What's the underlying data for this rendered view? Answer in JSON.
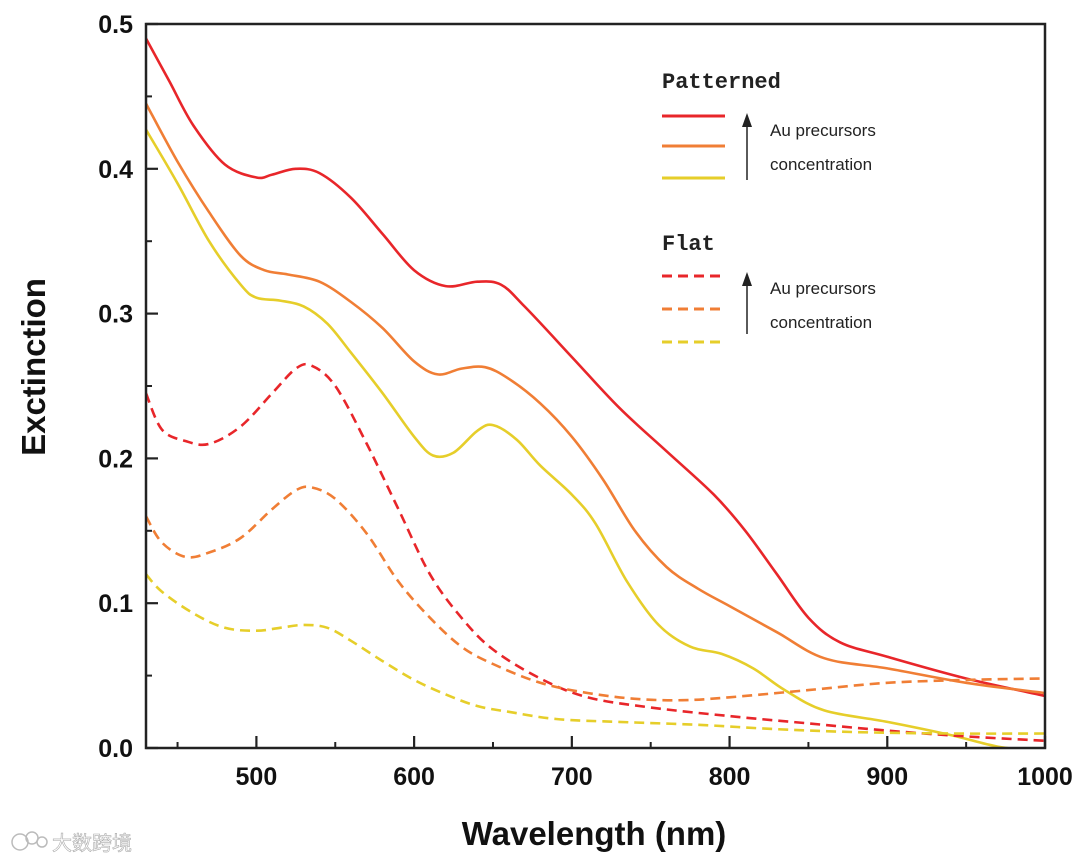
{
  "chart_data": {
    "type": "line",
    "xlabel": "Wavelength (nm)",
    "ylabel": "Exctinction",
    "xlim": [
      430,
      1000
    ],
    "ylim": [
      0,
      0.5
    ],
    "x_ticks": [
      500,
      600,
      700,
      800,
      900,
      1000
    ],
    "x_tick_labels": [
      "500",
      "600",
      "700",
      "800",
      "900",
      "1000"
    ],
    "y_ticks": [
      0.0,
      0.1,
      0.2,
      0.3,
      0.4,
      0.5
    ],
    "y_tick_labels": [
      "0.0",
      "0.1",
      "0.2",
      "0.3",
      "0.4",
      "0.5"
    ],
    "grid": false,
    "legend": {
      "placement": "top-right",
      "groups": [
        {
          "title": "Patterned",
          "note_line1": "Au precursors",
          "note_line2": "concentration"
        },
        {
          "title": "Flat",
          "note_line1": "Au precursors",
          "note_line2": "concentration"
        }
      ]
    },
    "series": [
      {
        "name": "Patterned - high",
        "group": "Patterned",
        "color": "#e8262a",
        "style": "solid",
        "points": [
          [
            430,
            0.49
          ],
          [
            445,
            0.46
          ],
          [
            460,
            0.43
          ],
          [
            480,
            0.403
          ],
          [
            500,
            0.394
          ],
          [
            510,
            0.396
          ],
          [
            525,
            0.4
          ],
          [
            540,
            0.397
          ],
          [
            560,
            0.38
          ],
          [
            580,
            0.355
          ],
          [
            600,
            0.33
          ],
          [
            620,
            0.319
          ],
          [
            640,
            0.322
          ],
          [
            655,
            0.32
          ],
          [
            670,
            0.305
          ],
          [
            700,
            0.27
          ],
          [
            730,
            0.235
          ],
          [
            760,
            0.205
          ],
          [
            790,
            0.175
          ],
          [
            810,
            0.15
          ],
          [
            830,
            0.12
          ],
          [
            850,
            0.09
          ],
          [
            870,
            0.073
          ],
          [
            900,
            0.063
          ],
          [
            950,
            0.048
          ],
          [
            1000,
            0.036
          ]
        ]
      },
      {
        "name": "Patterned - medium",
        "group": "Patterned",
        "color": "#f07e35",
        "style": "solid",
        "points": [
          [
            430,
            0.445
          ],
          [
            450,
            0.405
          ],
          [
            470,
            0.37
          ],
          [
            490,
            0.34
          ],
          [
            505,
            0.33
          ],
          [
            520,
            0.327
          ],
          [
            540,
            0.322
          ],
          [
            560,
            0.308
          ],
          [
            580,
            0.29
          ],
          [
            600,
            0.267
          ],
          [
            615,
            0.258
          ],
          [
            630,
            0.262
          ],
          [
            645,
            0.263
          ],
          [
            660,
            0.255
          ],
          [
            680,
            0.238
          ],
          [
            700,
            0.215
          ],
          [
            720,
            0.185
          ],
          [
            740,
            0.15
          ],
          [
            760,
            0.125
          ],
          [
            780,
            0.11
          ],
          [
            800,
            0.098
          ],
          [
            830,
            0.08
          ],
          [
            860,
            0.062
          ],
          [
            900,
            0.055
          ],
          [
            950,
            0.045
          ],
          [
            1000,
            0.038
          ]
        ]
      },
      {
        "name": "Patterned - low",
        "group": "Patterned",
        "color": "#e6ce2a",
        "style": "solid",
        "points": [
          [
            430,
            0.427
          ],
          [
            450,
            0.39
          ],
          [
            470,
            0.35
          ],
          [
            490,
            0.32
          ],
          [
            500,
            0.311
          ],
          [
            515,
            0.309
          ],
          [
            530,
            0.305
          ],
          [
            545,
            0.293
          ],
          [
            560,
            0.273
          ],
          [
            580,
            0.245
          ],
          [
            600,
            0.215
          ],
          [
            612,
            0.202
          ],
          [
            625,
            0.204
          ],
          [
            640,
            0.219
          ],
          [
            650,
            0.223
          ],
          [
            665,
            0.213
          ],
          [
            680,
            0.195
          ],
          [
            700,
            0.175
          ],
          [
            715,
            0.155
          ],
          [
            735,
            0.115
          ],
          [
            755,
            0.085
          ],
          [
            775,
            0.07
          ],
          [
            795,
            0.065
          ],
          [
            815,
            0.055
          ],
          [
            835,
            0.04
          ],
          [
            860,
            0.026
          ],
          [
            900,
            0.018
          ],
          [
            940,
            0.009
          ],
          [
            970,
            0.001
          ],
          [
            1000,
            -0.003
          ]
        ]
      },
      {
        "name": "Flat - high",
        "group": "Flat",
        "color": "#e8262a",
        "style": "dashed",
        "points": [
          [
            430,
            0.245
          ],
          [
            440,
            0.22
          ],
          [
            455,
            0.212
          ],
          [
            470,
            0.21
          ],
          [
            490,
            0.222
          ],
          [
            510,
            0.245
          ],
          [
            525,
            0.262
          ],
          [
            535,
            0.264
          ],
          [
            550,
            0.25
          ],
          [
            570,
            0.21
          ],
          [
            590,
            0.165
          ],
          [
            610,
            0.12
          ],
          [
            630,
            0.09
          ],
          [
            650,
            0.068
          ],
          [
            680,
            0.048
          ],
          [
            710,
            0.035
          ],
          [
            750,
            0.028
          ],
          [
            800,
            0.022
          ],
          [
            850,
            0.017
          ],
          [
            900,
            0.012
          ],
          [
            950,
            0.008
          ],
          [
            1000,
            0.005
          ]
        ]
      },
      {
        "name": "Flat - medium",
        "group": "Flat",
        "color": "#f07e35",
        "style": "dashed",
        "points": [
          [
            430,
            0.16
          ],
          [
            440,
            0.142
          ],
          [
            455,
            0.132
          ],
          [
            470,
            0.135
          ],
          [
            490,
            0.145
          ],
          [
            510,
            0.165
          ],
          [
            525,
            0.178
          ],
          [
            535,
            0.18
          ],
          [
            550,
            0.172
          ],
          [
            570,
            0.148
          ],
          [
            590,
            0.115
          ],
          [
            610,
            0.09
          ],
          [
            630,
            0.07
          ],
          [
            650,
            0.058
          ],
          [
            680,
            0.045
          ],
          [
            710,
            0.038
          ],
          [
            740,
            0.034
          ],
          [
            770,
            0.033
          ],
          [
            800,
            0.035
          ],
          [
            850,
            0.04
          ],
          [
            900,
            0.045
          ],
          [
            950,
            0.047
          ],
          [
            1000,
            0.048
          ]
        ]
      },
      {
        "name": "Flat - low",
        "group": "Flat",
        "color": "#e6ce2a",
        "style": "dashed",
        "points": [
          [
            430,
            0.12
          ],
          [
            440,
            0.108
          ],
          [
            460,
            0.093
          ],
          [
            480,
            0.083
          ],
          [
            500,
            0.081
          ],
          [
            515,
            0.083
          ],
          [
            530,
            0.085
          ],
          [
            545,
            0.083
          ],
          [
            560,
            0.074
          ],
          [
            580,
            0.06
          ],
          [
            600,
            0.047
          ],
          [
            620,
            0.037
          ],
          [
            640,
            0.029
          ],
          [
            660,
            0.025
          ],
          [
            690,
            0.02
          ],
          [
            730,
            0.018
          ],
          [
            780,
            0.016
          ],
          [
            830,
            0.013
          ],
          [
            880,
            0.011
          ],
          [
            940,
            0.01
          ],
          [
            1000,
            0.01
          ]
        ]
      }
    ]
  },
  "watermark": {
    "text": "大数跨境"
  }
}
